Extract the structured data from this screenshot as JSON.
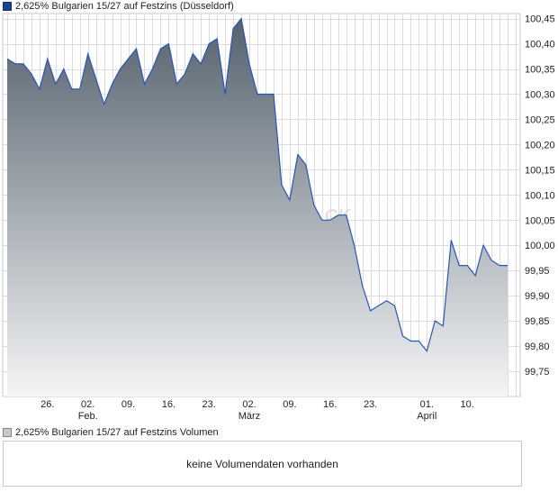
{
  "legend": {
    "price_label": "2,625% Bulgarien 15/27 auf Festzins (Düsseldorf)",
    "volume_label": "2,625% Bulgarien 15/27 auf Festzins Volumen"
  },
  "volume": {
    "message": "keine Volumendaten vorhanden"
  },
  "watermark": "CK",
  "colors": {
    "line": "#2a55b0",
    "fill_top": "#55626e",
    "fill_bottom": "#f4f5f6",
    "grid": "#dcdcdc"
  },
  "chart_data": {
    "type": "area",
    "title": "2,625% Bulgarien 15/27 auf Festzins (Düsseldorf)",
    "ylim": [
      99.7,
      100.46
    ],
    "yticks": [
      "99,75",
      "99,80",
      "99,85",
      "99,90",
      "99,95",
      "100,00",
      "100,05",
      "100,10",
      "100,15",
      "100,20",
      "100,25",
      "100,30",
      "100,35",
      "100,40",
      "100,45"
    ],
    "ytick_values": [
      99.75,
      99.8,
      99.85,
      99.9,
      99.95,
      100.0,
      100.05,
      100.1,
      100.15,
      100.2,
      100.25,
      100.3,
      100.35,
      100.4,
      100.45
    ],
    "xlim": [
      0,
      126
    ],
    "xticks": [
      {
        "day": 10,
        "label": "26.",
        "sub": ""
      },
      {
        "day": 20,
        "label": "02.",
        "sub": "Feb."
      },
      {
        "day": 30,
        "label": "09.",
        "sub": ""
      },
      {
        "day": 40,
        "label": "16.",
        "sub": ""
      },
      {
        "day": 50,
        "label": "23.",
        "sub": ""
      },
      {
        "day": 60,
        "label": "02.",
        "sub": "März"
      },
      {
        "day": 70,
        "label": "09.",
        "sub": ""
      },
      {
        "day": 80,
        "label": "16.",
        "sub": ""
      },
      {
        "day": 90,
        "label": "23.",
        "sub": ""
      },
      {
        "day": 104,
        "label": "01.",
        "sub": "April"
      },
      {
        "day": 114,
        "label": "10.",
        "sub": ""
      }
    ],
    "series": [
      {
        "name": "2,625% Bulgarien 15/27 auf Festzins",
        "x": [
          0,
          2,
          4,
          6,
          8,
          10,
          12,
          14,
          16,
          18,
          20,
          22,
          24,
          26,
          28,
          30,
          32,
          34,
          36,
          38,
          40,
          42,
          44,
          46,
          48,
          50,
          52,
          54,
          56,
          58,
          60,
          62,
          64,
          66,
          68,
          70,
          72,
          74,
          76,
          78,
          80,
          82,
          84,
          86,
          88,
          90,
          92,
          94,
          96,
          98,
          100,
          102,
          104,
          106,
          108,
          110,
          112,
          114,
          116,
          118,
          120,
          122,
          124
        ],
        "values": [
          100.37,
          100.36,
          100.36,
          100.34,
          100.31,
          100.37,
          100.32,
          100.35,
          100.31,
          100.31,
          100.38,
          100.33,
          100.28,
          100.32,
          100.35,
          100.37,
          100.39,
          100.32,
          100.35,
          100.39,
          100.4,
          100.32,
          100.34,
          100.38,
          100.36,
          100.4,
          100.41,
          100.3,
          100.43,
          100.45,
          100.36,
          100.3,
          100.3,
          100.3,
          100.12,
          100.09,
          100.18,
          100.16,
          100.08,
          100.05,
          100.05,
          100.06,
          100.06,
          100.0,
          99.92,
          99.87,
          99.88,
          99.89,
          99.88,
          99.82,
          99.81,
          99.81,
          99.79,
          99.85,
          99.84,
          100.01,
          99.96,
          99.96,
          99.94,
          100.0,
          99.97,
          99.96,
          99.96
        ]
      }
    ]
  }
}
